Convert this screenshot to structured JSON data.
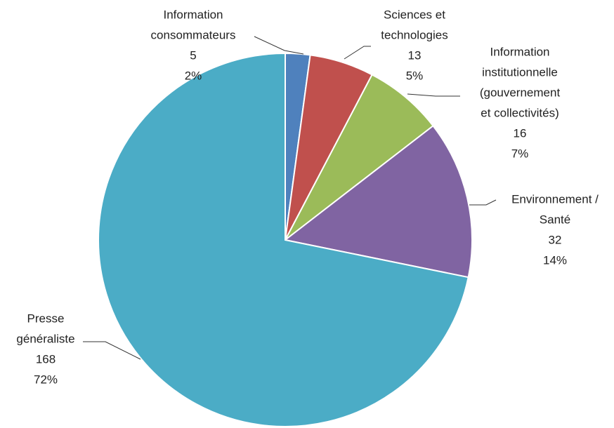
{
  "chart_data": {
    "type": "pie",
    "categories": [
      [
        "Information",
        "consommateurs"
      ],
      [
        "Sciences et",
        "technologies"
      ],
      [
        "Information",
        "institutionnelle",
        "(gouvernement",
        "et collectivités)"
      ],
      [
        "Environnement /",
        "Santé"
      ],
      [
        "Presse",
        "généraliste"
      ]
    ],
    "values": [
      5,
      13,
      16,
      32,
      168
    ],
    "percent_labels": [
      "2%",
      "5%",
      "7%",
      "14%",
      "72%"
    ],
    "colors": [
      "#4f81bd",
      "#c0504d",
      "#9bbb59",
      "#8064a2",
      "#4bacc6"
    ]
  }
}
